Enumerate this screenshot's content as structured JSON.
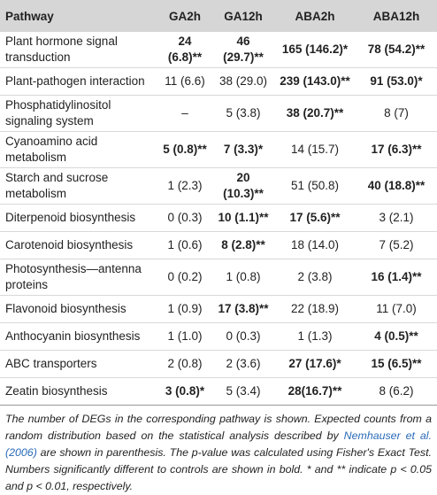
{
  "table": {
    "header": [
      "Pathway",
      "GA2h",
      "GA12h",
      "ABA2h",
      "ABA12h"
    ],
    "rows": [
      {
        "pathway": "Plant hormone signal transduction",
        "cells": [
          "24 (6.8)**",
          "46 (29.7)**",
          "165 (146.2)*",
          "78 (54.2)**"
        ],
        "bold": [
          true,
          true,
          true,
          true
        ]
      },
      {
        "pathway": "Plant-pathogen interaction",
        "cells": [
          "11 (6.6)",
          "38 (29.0)",
          "239 (143.0)**",
          "91 (53.0)*"
        ],
        "bold": [
          false,
          false,
          true,
          true
        ]
      },
      {
        "pathway": "Phosphatidylinositol signaling system",
        "cells": [
          "–",
          "5 (3.8)",
          "38 (20.7)**",
          "8 (7)"
        ],
        "bold": [
          false,
          false,
          true,
          false
        ]
      },
      {
        "pathway": "Cyanoamino acid metabolism",
        "cells": [
          "5 (0.8)**",
          "7 (3.3)*",
          "14 (15.7)",
          "17 (6.3)**"
        ],
        "bold": [
          true,
          true,
          false,
          true
        ]
      },
      {
        "pathway": "Starch and sucrose metabolism",
        "cells": [
          "1 (2.3)",
          "20 (10.3)**",
          "51 (50.8)",
          "40 (18.8)**"
        ],
        "bold": [
          false,
          true,
          false,
          true
        ]
      },
      {
        "pathway": "Diterpenoid biosynthesis",
        "cells": [
          "0 (0.3)",
          "10 (1.1)**",
          "17 (5.6)**",
          "3 (2.1)"
        ],
        "bold": [
          false,
          true,
          true,
          false
        ]
      },
      {
        "pathway": "Carotenoid biosynthesis",
        "cells": [
          "1 (0.6)",
          "8 (2.8)**",
          "18 (14.0)",
          "7 (5.2)"
        ],
        "bold": [
          false,
          true,
          false,
          false
        ]
      },
      {
        "pathway": "Photosynthesis—antenna proteins",
        "cells": [
          "0 (0.2)",
          "1 (0.8)",
          "2 (3.8)",
          "16 (1.4)**"
        ],
        "bold": [
          false,
          false,
          false,
          true
        ]
      },
      {
        "pathway": "Flavonoid biosynthesis",
        "cells": [
          "1 (0.9)",
          "17 (3.8)**",
          "22 (18.9)",
          "11 (7.0)"
        ],
        "bold": [
          false,
          true,
          false,
          false
        ]
      },
      {
        "pathway": "Anthocyanin biosynthesis",
        "cells": [
          "1 (1.0)",
          "0 (0.3)",
          "1 (1.3)",
          "4 (0.5)**"
        ],
        "bold": [
          false,
          false,
          false,
          true
        ]
      },
      {
        "pathway": "ABC transporters",
        "cells": [
          "2 (0.8)",
          "2 (3.6)",
          "27 (17.6)*",
          "15 (6.5)**"
        ],
        "bold": [
          false,
          false,
          true,
          true
        ]
      },
      {
        "pathway": "Zeatin biosynthesis",
        "cells": [
          "3 (0.8)*",
          "5 (3.4)",
          "28(16.7)**",
          "8 (6.2)"
        ],
        "bold": [
          true,
          false,
          true,
          false
        ]
      }
    ]
  },
  "footnote": [
    "The number of DEGs in the corresponding pathway is shown. Expected counts from a random distribution based on the statistical analysis described by ",
    "Nemhauser et al. (2006)",
    " are shown in parenthesis. The p-value was calculated using Fisher's Exact Test. Numbers significantly different to controls are shown in bold. * and ** indicate p < 0.05 and p < 0.01, respectively."
  ]
}
